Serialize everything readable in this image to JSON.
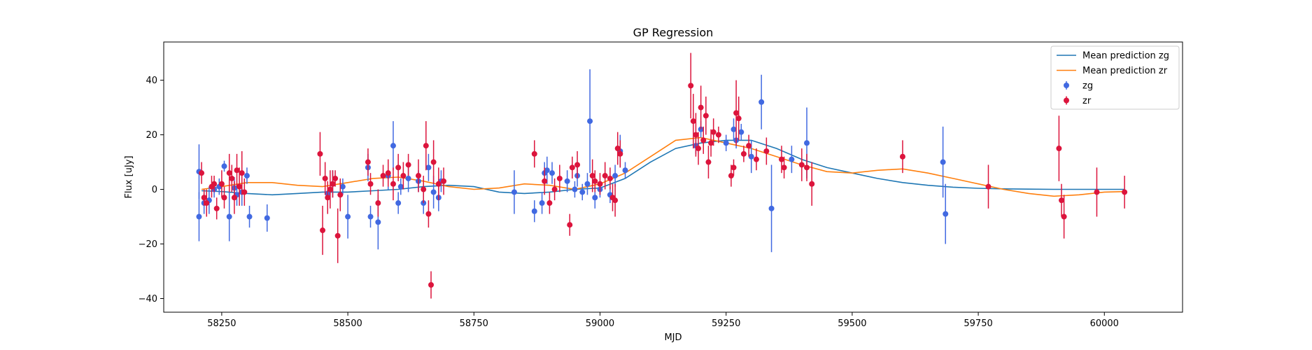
{
  "chart_data": {
    "type": "scatter",
    "title": "GP Regression",
    "xlabel": "MJD",
    "ylabel": "Flux [uJy]",
    "xlim": [
      58135,
      60155
    ],
    "ylim": [
      -45,
      54
    ],
    "xticks": [
      58250,
      58500,
      58750,
      59000,
      59250,
      59500,
      59750,
      60000
    ],
    "yticks": [
      -40,
      -20,
      0,
      20,
      40
    ],
    "legend_position": "top-right",
    "legend": [
      {
        "label": "Mean prediction zg",
        "kind": "line",
        "color": "#1f77b4"
      },
      {
        "label": "Mean prediction zr",
        "kind": "line",
        "color": "#ff7f0e"
      },
      {
        "label": "zg",
        "kind": "errorbar",
        "color": "#4169e1"
      },
      {
        "label": "zr",
        "kind": "errorbar",
        "color": "#dc143c"
      }
    ],
    "lines": [
      {
        "name": "Mean prediction zg",
        "color": "#1f77b4",
        "x": [
          58210,
          58250,
          58300,
          58350,
          58400,
          58450,
          58500,
          58550,
          58600,
          58650,
          58700,
          58750,
          58800,
          58850,
          58900,
          58950,
          59000,
          59050,
          59100,
          59150,
          59200,
          59250,
          59300,
          59350,
          59400,
          59450,
          59500,
          59550,
          59600,
          59650,
          59700,
          59750,
          59800,
          59850,
          59900,
          59950,
          60000,
          60040
        ],
        "y": [
          -0.5,
          -0.8,
          -1.5,
          -2,
          -1.5,
          -1,
          -1,
          -0.5,
          0,
          1,
          1.5,
          1,
          -1,
          -1.5,
          -1,
          0,
          0.5,
          4,
          10,
          15,
          17,
          18,
          18,
          15,
          11,
          8,
          6,
          4,
          2.5,
          1.5,
          0.8,
          0.4,
          0.2,
          0.1,
          0,
          0,
          0,
          0
        ]
      },
      {
        "name": "Mean prediction zr",
        "color": "#ff7f0e",
        "x": [
          58210,
          58250,
          58300,
          58350,
          58400,
          58450,
          58500,
          58550,
          58600,
          58650,
          58700,
          58750,
          58800,
          58850,
          58900,
          58950,
          59000,
          59050,
          59100,
          59150,
          59200,
          59250,
          59300,
          59350,
          59400,
          59450,
          59500,
          59550,
          59600,
          59650,
          59700,
          59750,
          59800,
          59850,
          59900,
          59950,
          60000,
          60040
        ],
        "y": [
          0,
          1,
          2.5,
          2.5,
          1.5,
          1,
          2.5,
          4,
          4.5,
          3,
          1,
          0,
          0.5,
          2,
          1.5,
          0,
          2,
          6,
          12,
          18,
          19,
          17,
          15,
          12,
          9,
          6.5,
          6,
          7,
          7.5,
          6,
          4,
          2,
          0,
          -1.5,
          -2.5,
          -2,
          -1,
          -0.8
        ]
      }
    ],
    "series": [
      {
        "name": "zg",
        "color": "#4169e1",
        "points": [
          [
            58205,
            6.5,
            10
          ],
          [
            58205,
            -10,
            9
          ],
          [
            58215,
            -5,
            4
          ],
          [
            58225,
            -4,
            5
          ],
          [
            58235,
            0,
            3
          ],
          [
            58245,
            1,
            3
          ],
          [
            58255,
            8.5,
            2
          ],
          [
            58265,
            -10,
            9
          ],
          [
            58275,
            0.5,
            4
          ],
          [
            58280,
            -2,
            4
          ],
          [
            58290,
            -1,
            5
          ],
          [
            58300,
            5,
            3
          ],
          [
            58305,
            -10,
            4
          ],
          [
            58340,
            -10.5,
            5
          ],
          [
            58460,
            -1.5,
            4
          ],
          [
            58470,
            2,
            5
          ],
          [
            58490,
            1,
            3
          ],
          [
            58500,
            -10,
            8
          ],
          [
            58540,
            8,
            5
          ],
          [
            58545,
            -10,
            4
          ],
          [
            58560,
            -12,
            10
          ],
          [
            58580,
            5,
            5
          ],
          [
            58590,
            16,
            9
          ],
          [
            58600,
            -5,
            4
          ],
          [
            58605,
            1,
            3
          ],
          [
            58620,
            4,
            5
          ],
          [
            58640,
            3,
            4
          ],
          [
            58650,
            -5,
            4
          ],
          [
            58660,
            8,
            5
          ],
          [
            58670,
            -1,
            6
          ],
          [
            58680,
            -3,
            5
          ],
          [
            58685,
            3,
            4
          ],
          [
            58830,
            -1,
            8
          ],
          [
            58870,
            -8,
            4
          ],
          [
            58885,
            -5,
            4
          ],
          [
            58890,
            6,
            4
          ],
          [
            58895,
            7,
            5
          ],
          [
            58905,
            6,
            4
          ],
          [
            58935,
            3,
            4
          ],
          [
            58950,
            0,
            3
          ],
          [
            58955,
            5,
            4
          ],
          [
            58965,
            -1,
            3
          ],
          [
            58975,
            2,
            4
          ],
          [
            58980,
            25,
            19
          ],
          [
            58990,
            -3,
            4
          ],
          [
            59000,
            0,
            3
          ],
          [
            59020,
            -2,
            3
          ],
          [
            59030,
            5,
            4
          ],
          [
            59040,
            14,
            6
          ],
          [
            59050,
            7,
            3
          ],
          [
            59190,
            16,
            3
          ],
          [
            59200,
            22,
            3
          ],
          [
            59250,
            17,
            3
          ],
          [
            59265,
            22,
            4
          ],
          [
            59270,
            18,
            3
          ],
          [
            59280,
            21,
            3
          ],
          [
            59300,
            12,
            6
          ],
          [
            59320,
            32,
            10
          ],
          [
            59340,
            -7,
            16
          ],
          [
            59380,
            11,
            5
          ],
          [
            59410,
            17,
            13
          ],
          [
            59680,
            10,
            13
          ],
          [
            59685,
            -9,
            11
          ]
        ]
      },
      {
        "name": "zr",
        "color": "#dc143c",
        "points": [
          [
            58210,
            6,
            4
          ],
          [
            58215,
            -3,
            3
          ],
          [
            58220,
            -5,
            5
          ],
          [
            58230,
            1,
            4
          ],
          [
            58235,
            2,
            3
          ],
          [
            58240,
            -7,
            4
          ],
          [
            58250,
            2,
            5
          ],
          [
            58255,
            -3,
            4
          ],
          [
            58265,
            6,
            7
          ],
          [
            58270,
            4,
            5
          ],
          [
            58275,
            -3,
            6
          ],
          [
            58280,
            7,
            6
          ],
          [
            58285,
            1,
            7
          ],
          [
            58290,
            6,
            8
          ],
          [
            58295,
            -1,
            5
          ],
          [
            58445,
            13,
            8
          ],
          [
            58450,
            -15,
            9
          ],
          [
            58455,
            4,
            6
          ],
          [
            58460,
            -3,
            6
          ],
          [
            58465,
            0,
            7
          ],
          [
            58470,
            2,
            5
          ],
          [
            58475,
            4,
            3
          ],
          [
            58480,
            -17,
            10
          ],
          [
            58485,
            -2,
            6
          ],
          [
            58540,
            10,
            5
          ],
          [
            58545,
            2,
            4
          ],
          [
            58560,
            -5,
            5
          ],
          [
            58570,
            5,
            4
          ],
          [
            58580,
            6,
            5
          ],
          [
            58590,
            2,
            6
          ],
          [
            58600,
            8,
            5
          ],
          [
            58610,
            5,
            5
          ],
          [
            58620,
            9,
            4
          ],
          [
            58640,
            5,
            6
          ],
          [
            58650,
            0,
            5
          ],
          [
            58655,
            16,
            9
          ],
          [
            58660,
            -9,
            5
          ],
          [
            58665,
            -35,
            5
          ],
          [
            58670,
            10,
            8
          ],
          [
            58680,
            2,
            6
          ],
          [
            58690,
            3,
            5
          ],
          [
            58870,
            13,
            5
          ],
          [
            58890,
            3,
            5
          ],
          [
            58900,
            -5,
            4
          ],
          [
            58910,
            0,
            4
          ],
          [
            58920,
            4,
            5
          ],
          [
            58940,
            -13,
            4
          ],
          [
            58945,
            8,
            4
          ],
          [
            58955,
            9,
            5
          ],
          [
            58985,
            5,
            6
          ],
          [
            58990,
            3,
            4
          ],
          [
            59000,
            2,
            4
          ],
          [
            59010,
            5,
            5
          ],
          [
            59020,
            4,
            4
          ],
          [
            59025,
            -3,
            5
          ],
          [
            59030,
            -4,
            6
          ],
          [
            59035,
            15,
            6
          ],
          [
            59040,
            13,
            5
          ],
          [
            59180,
            38,
            12
          ],
          [
            59185,
            25,
            10
          ],
          [
            59190,
            20,
            8
          ],
          [
            59195,
            15,
            6
          ],
          [
            59200,
            30,
            8
          ],
          [
            59205,
            18,
            5
          ],
          [
            59210,
            27,
            7
          ],
          [
            59215,
            10,
            6
          ],
          [
            59220,
            17,
            5
          ],
          [
            59225,
            21,
            5
          ],
          [
            59235,
            20,
            3
          ],
          [
            59260,
            5,
            4
          ],
          [
            59265,
            8,
            3
          ],
          [
            59270,
            28,
            12
          ],
          [
            59275,
            26,
            8
          ],
          [
            59285,
            13,
            3
          ],
          [
            59295,
            16,
            4
          ],
          [
            59310,
            11,
            4
          ],
          [
            59330,
            14,
            5
          ],
          [
            59360,
            11,
            5
          ],
          [
            59365,
            8,
            4
          ],
          [
            59400,
            9,
            6
          ],
          [
            59410,
            8,
            5
          ],
          [
            59420,
            2,
            8
          ],
          [
            59600,
            12,
            6
          ],
          [
            59770,
            1,
            8
          ],
          [
            59910,
            15,
            12
          ],
          [
            59915,
            -4,
            6
          ],
          [
            59920,
            -10,
            8
          ],
          [
            59985,
            -1,
            9
          ],
          [
            60040,
            -1,
            6
          ]
        ]
      }
    ]
  }
}
